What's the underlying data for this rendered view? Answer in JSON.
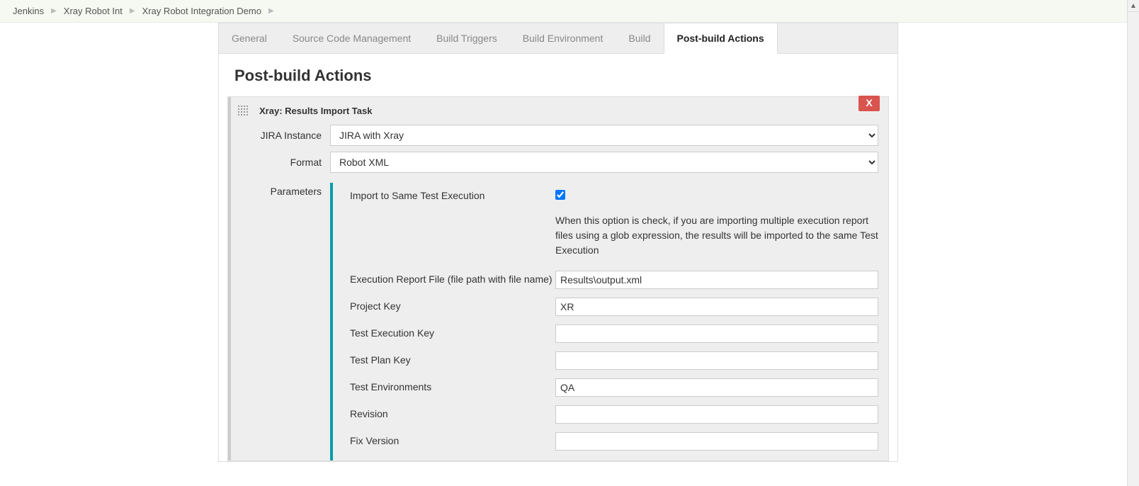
{
  "breadcrumb": {
    "items": [
      "Jenkins",
      "Xray Robot Int",
      "Xray Robot Integration Demo"
    ]
  },
  "tabs": {
    "items": [
      {
        "label": "General",
        "active": false
      },
      {
        "label": "Source Code Management",
        "active": false
      },
      {
        "label": "Build Triggers",
        "active": false
      },
      {
        "label": "Build Environment",
        "active": false
      },
      {
        "label": "Build",
        "active": false
      },
      {
        "label": "Post-build Actions",
        "active": true
      }
    ]
  },
  "section": {
    "title": "Post-build Actions"
  },
  "task": {
    "title": "Xray: Results Import Task",
    "delete_label": "X",
    "jira_instance": {
      "label": "JIRA Instance",
      "value": "JIRA with Xray"
    },
    "format": {
      "label": "Format",
      "value": "Robot XML"
    },
    "parameters_label": "Parameters",
    "params": {
      "same_exec": {
        "label": "Import to Same Test Execution",
        "checked": true,
        "help": "When this option is check, if you are importing multiple execution report files using a glob expression, the results will be imported to the same Test Execution"
      },
      "report_file": {
        "label": "Execution Report File (file path with file name)",
        "value": "Results\\output.xml"
      },
      "project_key": {
        "label": "Project Key",
        "value": "XR"
      },
      "test_exec_key": {
        "label": "Test Execution Key",
        "value": ""
      },
      "test_plan_key": {
        "label": "Test Plan Key",
        "value": ""
      },
      "test_env": {
        "label": "Test Environments",
        "value": "QA"
      },
      "revision": {
        "label": "Revision",
        "value": ""
      },
      "fix_version": {
        "label": "Fix Version",
        "value": ""
      }
    }
  },
  "colors": {
    "teal_accent": "#059da8",
    "delete_red": "#d9534f",
    "tab_bg": "#eeeeee",
    "breadcrumb_bg": "#f6f8f2"
  }
}
